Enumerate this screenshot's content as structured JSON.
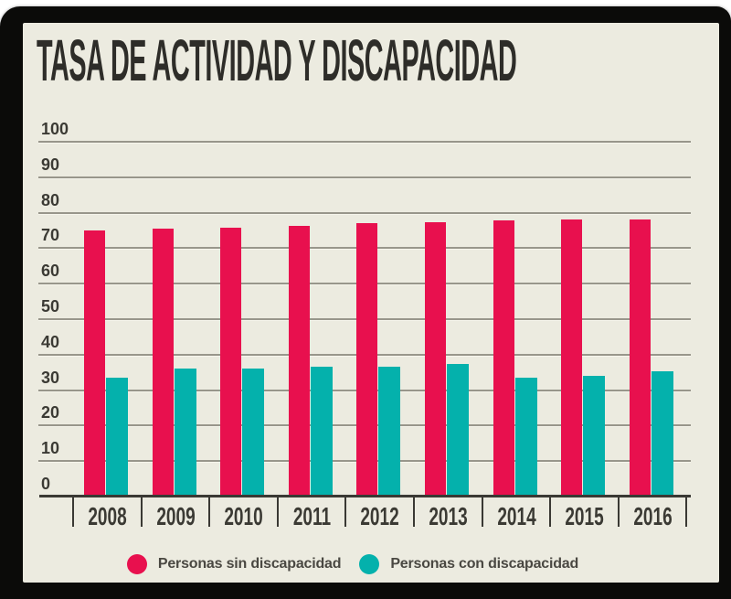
{
  "title": "TASA DE ACTIVIDAD Y DISCAPACIDAD",
  "colors": {
    "page_background": "#FFFFFF",
    "frame": "#0B0B09",
    "panel_background": "#ECEBE0",
    "gridline": "#98968B",
    "axis": "#3A3934",
    "axis_label": "#3B3A34",
    "title_text": "#2E2D29",
    "legend_text": "#4A4842",
    "series_sin": "#E8104E",
    "series_con": "#04B1AC"
  },
  "chart_data": {
    "type": "bar",
    "title": "TASA DE ACTIVIDAD Y DISCAPACIDAD",
    "categories": [
      "2008",
      "2009",
      "2010",
      "2011",
      "2012",
      "2013",
      "2014",
      "2015",
      "2016"
    ],
    "series": [
      {
        "name": "Personas sin discapacidad",
        "color": "#E8104E",
        "values": [
          74.9,
          75.4,
          75.9,
          76.4,
          77.0,
          77.2,
          77.8,
          78.1,
          78.1
        ]
      },
      {
        "name": "Personas con discapacidad",
        "color": "#04B1AC",
        "values": [
          33.5,
          36.1,
          36.0,
          36.6,
          36.6,
          37.4,
          33.6,
          34.0,
          35.2
        ]
      }
    ],
    "xlabel": "",
    "ylabel": "",
    "ylim": [
      0,
      100
    ],
    "yticks": [
      0,
      10,
      20,
      30,
      40,
      50,
      60,
      70,
      80,
      90,
      100
    ],
    "grid": true,
    "legend_position": "bottom"
  }
}
